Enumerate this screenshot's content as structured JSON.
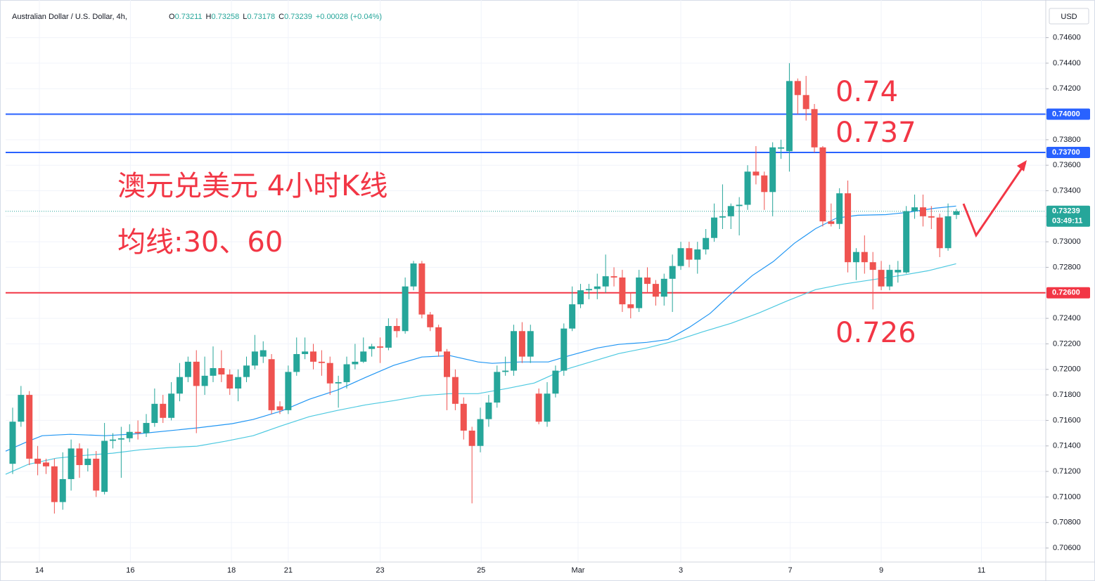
{
  "chart_data": {
    "type": "candlestick",
    "title": "Australian Dollar / U.S. Dollar, 4h,",
    "ohlc_header": [
      {
        "label": "O",
        "value": "0.73211"
      },
      {
        "label": "H",
        "value": "0.73258"
      },
      {
        "label": "L",
        "value": "0.73178"
      },
      {
        "label": "C",
        "value": "0.73239"
      }
    ],
    "change": "+0.00028 (+0.04%)",
    "currency": "USD",
    "annotations": [
      "澳元兑美元 4小时K线",
      "均线:30、60",
      "0.74",
      "0.737",
      "0.726"
    ],
    "up_color": "#26a69a",
    "down_color": "#ef5350",
    "xlim": [
      -0.84,
      123.7
    ],
    "xticks": [
      {
        "value": 3.2,
        "label": "14"
      },
      {
        "value": 14.1,
        "label": "16"
      },
      {
        "value": 26.2,
        "label": "18"
      },
      {
        "value": 33.0,
        "label": "21"
      },
      {
        "value": 44.0,
        "label": "23"
      },
      {
        "value": 56.1,
        "label": "25"
      },
      {
        "value": 67.7,
        "label": "Mar"
      },
      {
        "value": 80.0,
        "label": "3"
      },
      {
        "value": 93.1,
        "label": "7"
      },
      {
        "value": 104.0,
        "label": "9"
      },
      {
        "value": 116.0,
        "label": "11"
      }
    ],
    "ylim": [
      0.7049,
      0.7484
    ],
    "yticks": [
      {
        "value": 0.706,
        "label": "0.70600"
      },
      {
        "value": 0.708,
        "label": "0.70800"
      },
      {
        "value": 0.71,
        "label": "0.71000"
      },
      {
        "value": 0.712,
        "label": "0.71200"
      },
      {
        "value": 0.714,
        "label": "0.71400"
      },
      {
        "value": 0.716,
        "label": "0.71600"
      },
      {
        "value": 0.718,
        "label": "0.71800"
      },
      {
        "value": 0.72,
        "label": "0.72000"
      },
      {
        "value": 0.722,
        "label": "0.72200"
      },
      {
        "value": 0.724,
        "label": "0.72400"
      },
      {
        "value": 0.726,
        "label": "0.72600"
      },
      {
        "value": 0.728,
        "label": "0.72800"
      },
      {
        "value": 0.73,
        "label": "0.73000"
      },
      {
        "value": 0.732,
        "label": "0.73200"
      },
      {
        "value": 0.734,
        "label": "0.73400"
      },
      {
        "value": 0.736,
        "label": "0.73600"
      },
      {
        "value": 0.738,
        "label": "0.73800"
      },
      {
        "value": 0.74,
        "label": "0.74000"
      },
      {
        "value": 0.742,
        "label": "0.74200"
      },
      {
        "value": 0.744,
        "label": "0.74400"
      },
      {
        "value": 0.746,
        "label": "0.74600"
      }
    ],
    "grid": true,
    "x": [
      0,
      1,
      2,
      3,
      4,
      5,
      6,
      7,
      8,
      9,
      10,
      11,
      12,
      13,
      14,
      15,
      16,
      17,
      18,
      19,
      20,
      21,
      22,
      23,
      24,
      25,
      26,
      27,
      28,
      29,
      30,
      31,
      32,
      33,
      34,
      35,
      36,
      37,
      38,
      39,
      40,
      41,
      42,
      43,
      44,
      45,
      46,
      47,
      48,
      49,
      50,
      51,
      52,
      53,
      54,
      55,
      56,
      57,
      58,
      59,
      60,
      61,
      62,
      63,
      64,
      65,
      66,
      67,
      68,
      69,
      70,
      71,
      72,
      73,
      74,
      75,
      76,
      77,
      78,
      79,
      80,
      81,
      82,
      83,
      84,
      85,
      86,
      87,
      88,
      89,
      90,
      91,
      92,
      93,
      94,
      95,
      96,
      97,
      98,
      99,
      100,
      101,
      102,
      103,
      104,
      105,
      106,
      107,
      108,
      109,
      110,
      111,
      112,
      113
    ],
    "open": [
      0.7126,
      0.7159,
      0.718,
      0.713,
      0.7127,
      0.7124,
      0.7096,
      0.7114,
      0.7138,
      0.7125,
      0.713,
      0.7104,
      0.7144,
      0.7145,
      0.7146,
      0.7151,
      0.715,
      0.7158,
      0.7173,
      0.7162,
      0.7181,
      0.7194,
      0.7206,
      0.7187,
      0.7195,
      0.7201,
      0.7196,
      0.7185,
      0.7194,
      0.7203,
      0.721,
      0.7208,
      0.7171,
      0.7168,
      0.7198,
      0.7212,
      0.7214,
      0.7206,
      0.7205,
      0.7189,
      0.719,
      0.7204,
      0.7206,
      0.7216,
      0.7218,
      0.7217,
      0.7234,
      0.723,
      0.7265,
      0.7283,
      0.7243,
      0.7233,
      0.7214,
      0.7194,
      0.7173,
      0.7152,
      0.714,
      0.7161,
      0.7174,
      0.7198,
      0.7199,
      0.723,
      0.721,
      0.7181,
      0.7159,
      0.7181,
      0.7199,
      0.7232,
      0.7251,
      0.7262,
      0.7263,
      0.7265,
      0.7273,
      0.7272,
      0.7251,
      0.7248,
      0.7272,
      0.7267,
      0.7257,
      0.7271,
      0.7281,
      0.7295,
      0.7286,
      0.7294,
      0.7303,
      0.7319,
      0.732,
      0.7328,
      0.7329,
      0.7355,
      0.7352,
      0.7339,
      0.7373,
      0.7371,
      0.7426,
      0.7415,
      0.7404,
      0.7374,
      0.7316,
      0.7314,
      0.7338,
      0.7284,
      0.7292,
      0.7284,
      0.7278,
      0.7265,
      0.7276,
      0.7276,
      0.7324,
      0.7327,
      0.732,
      0.7319,
      0.7295,
      0.73211
    ],
    "close": [
      0.7159,
      0.718,
      0.713,
      0.7126,
      0.7124,
      0.7096,
      0.7114,
      0.7138,
      0.7125,
      0.713,
      0.7105,
      0.7144,
      0.7145,
      0.7146,
      0.7151,
      0.715,
      0.7158,
      0.7173,
      0.7162,
      0.7181,
      0.7194,
      0.7206,
      0.7187,
      0.7195,
      0.7201,
      0.7196,
      0.7185,
      0.7194,
      0.7203,
      0.7214,
      0.7215,
      0.7168,
      0.7168,
      0.7198,
      0.7212,
      0.7214,
      0.7206,
      0.7205,
      0.7189,
      0.719,
      0.7204,
      0.7206,
      0.7214,
      0.7218,
      0.7217,
      0.7234,
      0.723,
      0.7265,
      0.7283,
      0.7243,
      0.7233,
      0.7214,
      0.7194,
      0.7173,
      0.7152,
      0.714,
      0.7161,
      0.7174,
      0.7198,
      0.7199,
      0.723,
      0.721,
      0.723,
      0.7159,
      0.7181,
      0.7199,
      0.7232,
      0.7251,
      0.7262,
      0.7263,
      0.7265,
      0.7273,
      0.7272,
      0.7251,
      0.7248,
      0.7272,
      0.7267,
      0.7257,
      0.7271,
      0.7281,
      0.7295,
      0.7286,
      0.7294,
      0.7303,
      0.7319,
      0.732,
      0.7328,
      0.7329,
      0.7355,
      0.7352,
      0.7339,
      0.7374,
      0.7374,
      0.7426,
      0.7415,
      0.7404,
      0.7374,
      0.7316,
      0.7314,
      0.7338,
      0.7284,
      0.7292,
      0.7284,
      0.7278,
      0.7265,
      0.7278,
      0.7278,
      0.7324,
      0.7327,
      0.732,
      0.7319,
      0.7295,
      0.732,
      0.73239
    ],
    "high": [
      0.717,
      0.7187,
      0.7183,
      0.714,
      0.713,
      0.713,
      0.7135,
      0.7145,
      0.7142,
      0.7138,
      0.7136,
      0.7158,
      0.715,
      0.7155,
      0.7157,
      0.716,
      0.7165,
      0.7185,
      0.718,
      0.719,
      0.7205,
      0.721,
      0.7215,
      0.721,
      0.7218,
      0.7215,
      0.72,
      0.72,
      0.721,
      0.7227,
      0.7222,
      0.7212,
      0.7175,
      0.7203,
      0.7225,
      0.7225,
      0.722,
      0.7215,
      0.721,
      0.7195,
      0.721,
      0.722,
      0.7225,
      0.722,
      0.7225,
      0.724,
      0.724,
      0.7272,
      0.7285,
      0.7285,
      0.7245,
      0.7235,
      0.7216,
      0.72,
      0.7178,
      0.7155,
      0.717,
      0.718,
      0.7203,
      0.721,
      0.7235,
      0.7237,
      0.7235,
      0.7185,
      0.719,
      0.7203,
      0.7236,
      0.7265,
      0.7267,
      0.7267,
      0.7275,
      0.729,
      0.728,
      0.7278,
      0.726,
      0.7278,
      0.728,
      0.727,
      0.7275,
      0.729,
      0.73,
      0.73,
      0.73,
      0.731,
      0.733,
      0.7345,
      0.733,
      0.7335,
      0.736,
      0.7375,
      0.7355,
      0.7378,
      0.738,
      0.744,
      0.7428,
      0.743,
      0.7408,
      0.7375,
      0.733,
      0.7342,
      0.7348,
      0.7295,
      0.7305,
      0.7292,
      0.7285,
      0.7282,
      0.7285,
      0.7328,
      0.7337,
      0.7337,
      0.7328,
      0.7322,
      0.733,
      0.73258
    ],
    "low": [
      0.7118,
      0.7155,
      0.7125,
      0.7117,
      0.7118,
      0.7087,
      0.709,
      0.7105,
      0.7115,
      0.712,
      0.71,
      0.7102,
      0.7138,
      0.7115,
      0.7143,
      0.7145,
      0.7147,
      0.7155,
      0.7158,
      0.716,
      0.7175,
      0.719,
      0.715,
      0.718,
      0.719,
      0.719,
      0.718,
      0.7175,
      0.719,
      0.72,
      0.7205,
      0.7165,
      0.7165,
      0.7165,
      0.7195,
      0.7208,
      0.72,
      0.7195,
      0.718,
      0.717,
      0.7185,
      0.72,
      0.7205,
      0.721,
      0.7205,
      0.7215,
      0.7225,
      0.7228,
      0.7262,
      0.724,
      0.723,
      0.721,
      0.7168,
      0.7168,
      0.7145,
      0.7095,
      0.7135,
      0.7155,
      0.717,
      0.7195,
      0.7195,
      0.7205,
      0.7205,
      0.7157,
      0.7155,
      0.7178,
      0.7195,
      0.723,
      0.7248,
      0.7255,
      0.7255,
      0.726,
      0.7265,
      0.7245,
      0.724,
      0.7245,
      0.726,
      0.725,
      0.725,
      0.7245,
      0.7278,
      0.728,
      0.7275,
      0.729,
      0.73,
      0.731,
      0.731,
      0.7305,
      0.7325,
      0.7345,
      0.7325,
      0.732,
      0.7365,
      0.7355,
      0.74,
      0.7395,
      0.737,
      0.7312,
      0.7312,
      0.731,
      0.7276,
      0.727,
      0.7275,
      0.7247,
      0.7262,
      0.7262,
      0.7268,
      0.7275,
      0.7318,
      0.7312,
      0.731,
      0.7288,
      0.7293,
      0.73178
    ],
    "ma_series": [
      {
        "color": "#2196f3",
        "x": [
          -0.84,
          1.85,
          3.54,
          6.9,
          11.11,
          15.32,
          19.53,
          22.05,
          26.26,
          28.79,
          32.15,
          35.52,
          38.89,
          42.26,
          45.62,
          48.99,
          52.36,
          55.72,
          57.41,
          60.77,
          64.14,
          66.67,
          70.03,
          72.56,
          75.93,
          78.45,
          80.98,
          83.5,
          86.03,
          88.55,
          91.08,
          93.6,
          96.13,
          98.65,
          101.18,
          104.55,
          107.07,
          110.44,
          112.96
        ],
        "values": [
          0.71359,
          0.71436,
          0.7148,
          0.71491,
          0.7148,
          0.71497,
          0.71524,
          0.71541,
          0.71574,
          0.71607,
          0.71673,
          0.71766,
          0.71838,
          0.71937,
          0.72031,
          0.72097,
          0.72108,
          0.72058,
          0.72047,
          0.72058,
          0.72058,
          0.72108,
          0.72168,
          0.72196,
          0.72212,
          0.72234,
          0.72328,
          0.72438,
          0.72592,
          0.72735,
          0.72845,
          0.72988,
          0.73103,
          0.73186,
          0.73208,
          0.73213,
          0.7323,
          0.73263,
          0.7328
        ]
      },
      {
        "color": "#4dc9e0",
        "x": [
          -0.84,
          1.85,
          5.22,
          8.59,
          11.95,
          15.32,
          18.69,
          22.05,
          25.42,
          28.79,
          32.15,
          35.52,
          38.89,
          42.26,
          45.62,
          48.99,
          52.36,
          55.72,
          59.09,
          62.46,
          65.82,
          69.19,
          72.56,
          75.93,
          79.29,
          82.66,
          86.03,
          89.39,
          92.76,
          96.13,
          99.49,
          102.86,
          106.23,
          109.6,
          112.96
        ],
        "values": [
          0.71178,
          0.71255,
          0.71304,
          0.71326,
          0.71343,
          0.7137,
          0.71387,
          0.71398,
          0.71436,
          0.7148,
          0.71557,
          0.71629,
          0.71678,
          0.71722,
          0.71755,
          0.71794,
          0.7181,
          0.7181,
          0.71849,
          0.71893,
          0.71992,
          0.72058,
          0.72124,
          0.72168,
          0.72223,
          0.72295,
          0.72361,
          0.72443,
          0.72537,
          0.72625,
          0.72669,
          0.72702,
          0.72735,
          0.72773,
          0.72828
        ]
      }
    ],
    "hlines": [
      {
        "value": 0.74,
        "label": "0.74000",
        "color": "#2962ff"
      },
      {
        "value": 0.737,
        "label": "0.73700",
        "color": "#2962ff"
      },
      {
        "value": 0.726,
        "label": "0.72600",
        "color": "#f23645"
      }
    ],
    "last_price": {
      "value": 0.73239,
      "label": "0.73239",
      "countdown": "03:49:11",
      "color": "#26a69a"
    }
  }
}
